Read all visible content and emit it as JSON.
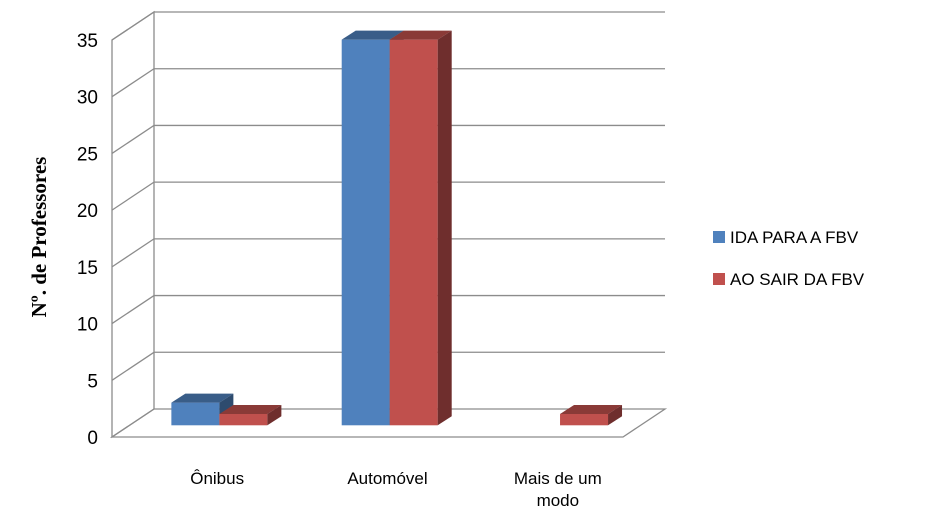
{
  "chart_data": {
    "type": "bar",
    "title": "",
    "xlabel": "",
    "ylabel": "Nº. de Professores",
    "categories": [
      "Ônibus",
      "Automóvel",
      "Mais de um modo"
    ],
    "series": [
      {
        "name": "IDA PARA A FBV",
        "values": [
          2,
          34,
          0
        ],
        "color": "#4f81bd"
      },
      {
        "name": "AO SAIR DA FBV",
        "values": [
          1,
          34,
          1
        ],
        "color": "#c0504d"
      }
    ],
    "ylim": [
      0,
      35
    ],
    "yticks": [
      0,
      5,
      10,
      15,
      20,
      25,
      30,
      35
    ],
    "grid": true,
    "legend": "right",
    "style": "3d-clustered-column"
  }
}
